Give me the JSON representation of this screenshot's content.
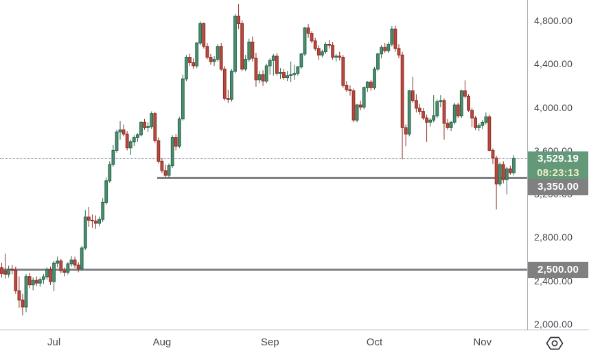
{
  "chart_data": {
    "type": "candlestick",
    "title": "",
    "xlabel": "",
    "ylabel": "",
    "grid": false,
    "legend": false,
    "ylim": [
      1950,
      4990
    ],
    "y_axis": {
      "tick_labels": [
        "4,800.00",
        "4,400.00",
        "4,000.00",
        "3,600.00",
        "3,200.00",
        "2,800.00",
        "2,400.00",
        "2,000.00"
      ],
      "tick_prices": [
        4800,
        4400,
        4000,
        3600,
        3200,
        2800,
        2400,
        2000
      ]
    },
    "x_axis": {
      "tick_labels": [
        "Jul",
        "Aug",
        "Sep",
        "Oct",
        "Nov"
      ],
      "tick_indices": [
        15,
        46,
        77,
        107,
        138
      ]
    },
    "colors": {
      "up_fill": "#4e8c70",
      "up_border": "#26654a",
      "down_fill": "#b9493f",
      "down_border": "#8c2f26",
      "line_gray": "#7e8086",
      "badge_gray": "#808080",
      "badge_green": "#639878",
      "countdown_text": "#eef0c6",
      "axis_text": "#45474f"
    },
    "price_lines": [
      {
        "price": 3350,
        "label": "3,350.00",
        "start_index": 45
      },
      {
        "price": 2500,
        "label": "2,500.00",
        "start_index": 0
      }
    ],
    "current_price": {
      "price": 3529.19,
      "label": "3,529.19",
      "countdown": "08:23:13"
    },
    "candles": [
      [
        2520,
        2565,
        2430,
        2465
      ],
      [
        2490,
        2650,
        2420,
        2460
      ],
      [
        2460,
        2540,
        2430,
        2505
      ],
      [
        2505,
        2545,
        2460,
        2498
      ],
      [
        2498,
        2530,
        2280,
        2308
      ],
      [
        2308,
        2440,
        2150,
        2222
      ],
      [
        2222,
        2280,
        2080,
        2158
      ],
      [
        2158,
        2462,
        2110,
        2438
      ],
      [
        2438,
        2472,
        2330,
        2362
      ],
      [
        2362,
        2432,
        2312,
        2404
      ],
      [
        2404,
        2440,
        2350,
        2378
      ],
      [
        2378,
        2432,
        2342,
        2412
      ],
      [
        2412,
        2462,
        2372,
        2436
      ],
      [
        2436,
        2522,
        2410,
        2502
      ],
      [
        2502,
        2532,
        2360,
        2392
      ],
      [
        2392,
        2582,
        2302,
        2562
      ],
      [
        2562,
        2622,
        2522,
        2582
      ],
      [
        2582,
        2602,
        2468,
        2492
      ],
      [
        2492,
        2522,
        2440,
        2478
      ],
      [
        2478,
        2572,
        2458,
        2556
      ],
      [
        2556,
        2626,
        2530,
        2592
      ],
      [
        2592,
        2622,
        2518,
        2544
      ],
      [
        2544,
        2572,
        2478,
        2512
      ],
      [
        2512,
        2722,
        2492,
        2702
      ],
      [
        2702,
        3052,
        2682,
        2988
      ],
      [
        2988,
        3082,
        2898,
        2958
      ],
      [
        2958,
        3012,
        2888,
        2952
      ],
      [
        2952,
        3002,
        2880,
        2930
      ],
      [
        2930,
        2992,
        2902,
        2966
      ],
      [
        2966,
        3162,
        2942,
        3122
      ],
      [
        3122,
        3352,
        3102,
        3322
      ],
      [
        3322,
        3502,
        3302,
        3472
      ],
      [
        3472,
        3652,
        3452,
        3602
      ],
      [
        3602,
        3792,
        3582,
        3772
      ],
      [
        3772,
        3872,
        3702,
        3792
      ],
      [
        3792,
        3842,
        3732,
        3752
      ],
      [
        3752,
        3782,
        3602,
        3626
      ],
      [
        3626,
        3702,
        3562,
        3682
      ],
      [
        3682,
        3742,
        3642,
        3722
      ],
      [
        3722,
        3762,
        3682,
        3746
      ],
      [
        3746,
        3872,
        3730,
        3862
      ],
      [
        3862,
        3892,
        3792,
        3812
      ],
      [
        3812,
        3862,
        3772,
        3822
      ],
      [
        3822,
        3962,
        3802,
        3942
      ],
      [
        3942,
        3958,
        3672,
        3692
      ],
      [
        3692,
        3722,
        3482,
        3502
      ],
      [
        3502,
        3532,
        3392,
        3416
      ],
      [
        3416,
        3472,
        3356,
        3372
      ],
      [
        3372,
        3482,
        3346,
        3462
      ],
      [
        3462,
        3742,
        3442,
        3722
      ],
      [
        3722,
        3752,
        3602,
        3642
      ],
      [
        3642,
        3912,
        3622,
        3892
      ],
      [
        3892,
        4302,
        3878,
        4262
      ],
      [
        4262,
        4482,
        4242,
        4462
      ],
      [
        4462,
        4492,
        4382,
        4412
      ],
      [
        4412,
        4452,
        4352,
        4382
      ],
      [
        4382,
        4602,
        4362,
        4592
      ],
      [
        4592,
        4792,
        4572,
        4772
      ],
      [
        4772,
        4782,
        4542,
        4562
      ],
      [
        4562,
        4592,
        4442,
        4462
      ],
      [
        4462,
        4492,
        4392,
        4422
      ],
      [
        4422,
        4472,
        4382,
        4442
      ],
      [
        4442,
        4582,
        4422,
        4562
      ],
      [
        4562,
        4592,
        4332,
        4352
      ],
      [
        4352,
        4382,
        4062,
        4082
      ],
      [
        4082,
        4162,
        4042,
        4072
      ],
      [
        4072,
        4352,
        4052,
        4332
      ],
      [
        4332,
        4862,
        4312,
        4842
      ],
      [
        4842,
        4952,
        4722,
        4772
      ],
      [
        4772,
        4802,
        4332,
        4352
      ],
      [
        4352,
        4482,
        4332,
        4442
      ],
      [
        4442,
        4632,
        4422,
        4602
      ],
      [
        4602,
        4652,
        4422,
        4452
      ],
      [
        4452,
        4502,
        4188,
        4252
      ],
      [
        4252,
        4332,
        4222,
        4302
      ],
      [
        4302,
        4342,
        4198,
        4242
      ],
      [
        4242,
        4402,
        4222,
        4382
      ],
      [
        4382,
        4452,
        4302,
        4432
      ],
      [
        4432,
        4492,
        4292,
        4472
      ],
      [
        4472,
        4502,
        4292,
        4312
      ],
      [
        4312,
        4362,
        4262,
        4322
      ],
      [
        4322,
        4352,
        4252,
        4272
      ],
      [
        4272,
        4332,
        4242,
        4292
      ],
      [
        4292,
        4422,
        4232,
        4302
      ],
      [
        4302,
        4392,
        4252,
        4312
      ],
      [
        4312,
        4382,
        4292,
        4372
      ],
      [
        4372,
        4502,
        4352,
        4492
      ],
      [
        4492,
        4742,
        4472,
        4732
      ],
      [
        4732,
        4768,
        4642,
        4682
      ],
      [
        4682,
        4702,
        4592,
        4612
      ],
      [
        4612,
        4642,
        4522,
        4542
      ],
      [
        4542,
        4572,
        4438,
        4482
      ],
      [
        4482,
        4532,
        4462,
        4512
      ],
      [
        4512,
        4602,
        4492,
        4582
      ],
      [
        4582,
        4622,
        4542,
        4572
      ],
      [
        4572,
        4602,
        4438,
        4462
      ],
      [
        4462,
        4492,
        4422,
        4472
      ],
      [
        4472,
        4512,
        4432,
        4462
      ],
      [
        4462,
        4482,
        4182,
        4202
      ],
      [
        4202,
        4242,
        4142,
        4162
      ],
      [
        4162,
        4202,
        4108,
        4152
      ],
      [
        4152,
        4172,
        3862,
        3882
      ],
      [
        3882,
        4032,
        3862,
        4022
      ],
      [
        4022,
        4062,
        3972,
        4002
      ],
      [
        4002,
        4192,
        3982,
        4182
      ],
      [
        4182,
        4242,
        4142,
        4232
      ],
      [
        4232,
        4252,
        4152,
        4182
      ],
      [
        4182,
        4372,
        4162,
        4352
      ],
      [
        4352,
        4502,
        4332,
        4492
      ],
      [
        4492,
        4572,
        4452,
        4552
      ],
      [
        4552,
        4592,
        4502,
        4522
      ],
      [
        4522,
        4602,
        4502,
        4582
      ],
      [
        4582,
        4748,
        4562,
        4722
      ],
      [
        4722,
        4752,
        4512,
        4542
      ],
      [
        4542,
        4582,
        4452,
        4482
      ],
      [
        4482,
        4512,
        3522,
        3812
      ],
      [
        3812,
        3842,
        3642,
        3752
      ],
      [
        3752,
        4162,
        3732,
        4152
      ],
      [
        4152,
        4282,
        4042,
        4062
      ],
      [
        4062,
        4122,
        3952,
        3992
      ],
      [
        3992,
        4032,
        3932,
        3962
      ],
      [
        3962,
        3992,
        3882,
        3902
      ],
      [
        3902,
        3932,
        3682,
        3862
      ],
      [
        3862,
        3902,
        3822,
        3882
      ],
      [
        3882,
        4112,
        3862,
        3922
      ],
      [
        3922,
        4072,
        3902,
        4052
      ],
      [
        4052,
        4112,
        4002,
        4062
      ],
      [
        4062,
        4082,
        3702,
        3852
      ],
      [
        3852,
        3892,
        3792,
        3812
      ],
      [
        3812,
        3872,
        3782,
        3862
      ],
      [
        3862,
        4042,
        3842,
        4022
      ],
      [
        4022,
        4042,
        3902,
        3922
      ],
      [
        3922,
        4162,
        3902,
        4152
      ],
      [
        4152,
        4248,
        4082,
        4102
      ],
      [
        4102,
        4122,
        3958,
        3972
      ],
      [
        3972,
        3992,
        3818,
        3902
      ],
      [
        3902,
        3922,
        3788,
        3812
      ],
      [
        3812,
        3852,
        3782,
        3832
      ],
      [
        3832,
        3882,
        3802,
        3862
      ],
      [
        3862,
        3952,
        3842,
        3912
      ],
      [
        3912,
        3932,
        3592,
        3602
      ],
      [
        3602,
        3622,
        3478,
        3532
      ],
      [
        3532,
        3552,
        3058,
        3292
      ],
      [
        3292,
        3492,
        3272,
        3472
      ],
      [
        3472,
        3502,
        3298,
        3332
      ],
      [
        3332,
        3452,
        3198,
        3432
      ],
      [
        3432,
        3462,
        3378,
        3396
      ],
      [
        3396,
        3562,
        3372,
        3529.19
      ]
    ]
  },
  "ui": {
    "corner_icon": "hexagon-circle"
  }
}
